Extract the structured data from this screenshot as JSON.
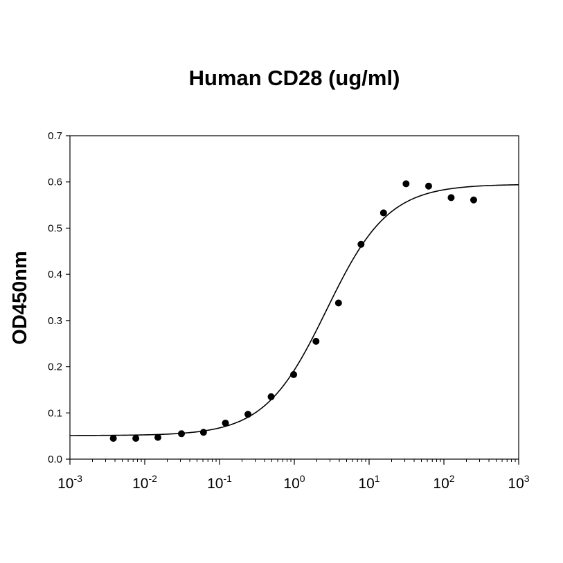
{
  "chart_data": {
    "type": "scatter",
    "title": "Human CD28 (ug/ml)",
    "xlabel": "",
    "ylabel": "OD450nm",
    "x_scale": "log",
    "xlim": [
      0.001,
      1000
    ],
    "ylim": [
      0,
      0.7
    ],
    "x_ticks": [
      {
        "base": "10",
        "exp": "-3",
        "value": 0.001
      },
      {
        "base": "10",
        "exp": "-2",
        "value": 0.01
      },
      {
        "base": "10",
        "exp": "-1",
        "value": 0.1
      },
      {
        "base": "10",
        "exp": "0",
        "value": 1
      },
      {
        "base": "10",
        "exp": "1",
        "value": 10
      },
      {
        "base": "10",
        "exp": "2",
        "value": 100
      },
      {
        "base": "10",
        "exp": "3",
        "value": 1000
      }
    ],
    "y_ticks": [
      "0.0",
      "0.1",
      "0.2",
      "0.3",
      "0.4",
      "0.5",
      "0.6",
      "0.7"
    ],
    "grid": false,
    "legend": "none",
    "marker_color": "#000000",
    "series": [
      {
        "type": "scatter",
        "points": [
          {
            "x": 0.0038,
            "y": 0.045
          },
          {
            "x": 0.0076,
            "y": 0.045
          },
          {
            "x": 0.015,
            "y": 0.047
          },
          {
            "x": 0.031,
            "y": 0.055
          },
          {
            "x": 0.061,
            "y": 0.058
          },
          {
            "x": 0.12,
            "y": 0.078
          },
          {
            "x": 0.24,
            "y": 0.097
          },
          {
            "x": 0.49,
            "y": 0.135
          },
          {
            "x": 0.98,
            "y": 0.183
          },
          {
            "x": 1.95,
            "y": 0.255
          },
          {
            "x": 3.9,
            "y": 0.338
          },
          {
            "x": 7.8,
            "y": 0.465
          },
          {
            "x": 15.6,
            "y": 0.533
          },
          {
            "x": 31.2,
            "y": 0.596
          },
          {
            "x": 62.5,
            "y": 0.591
          },
          {
            "x": 125,
            "y": 0.566
          },
          {
            "x": 250,
            "y": 0.561
          }
        ]
      },
      {
        "type": "line",
        "fit": "4-parameter logistic",
        "bottom": 0.051,
        "top": 0.595,
        "ec50": 2.7,
        "hill": 1.05
      }
    ]
  }
}
